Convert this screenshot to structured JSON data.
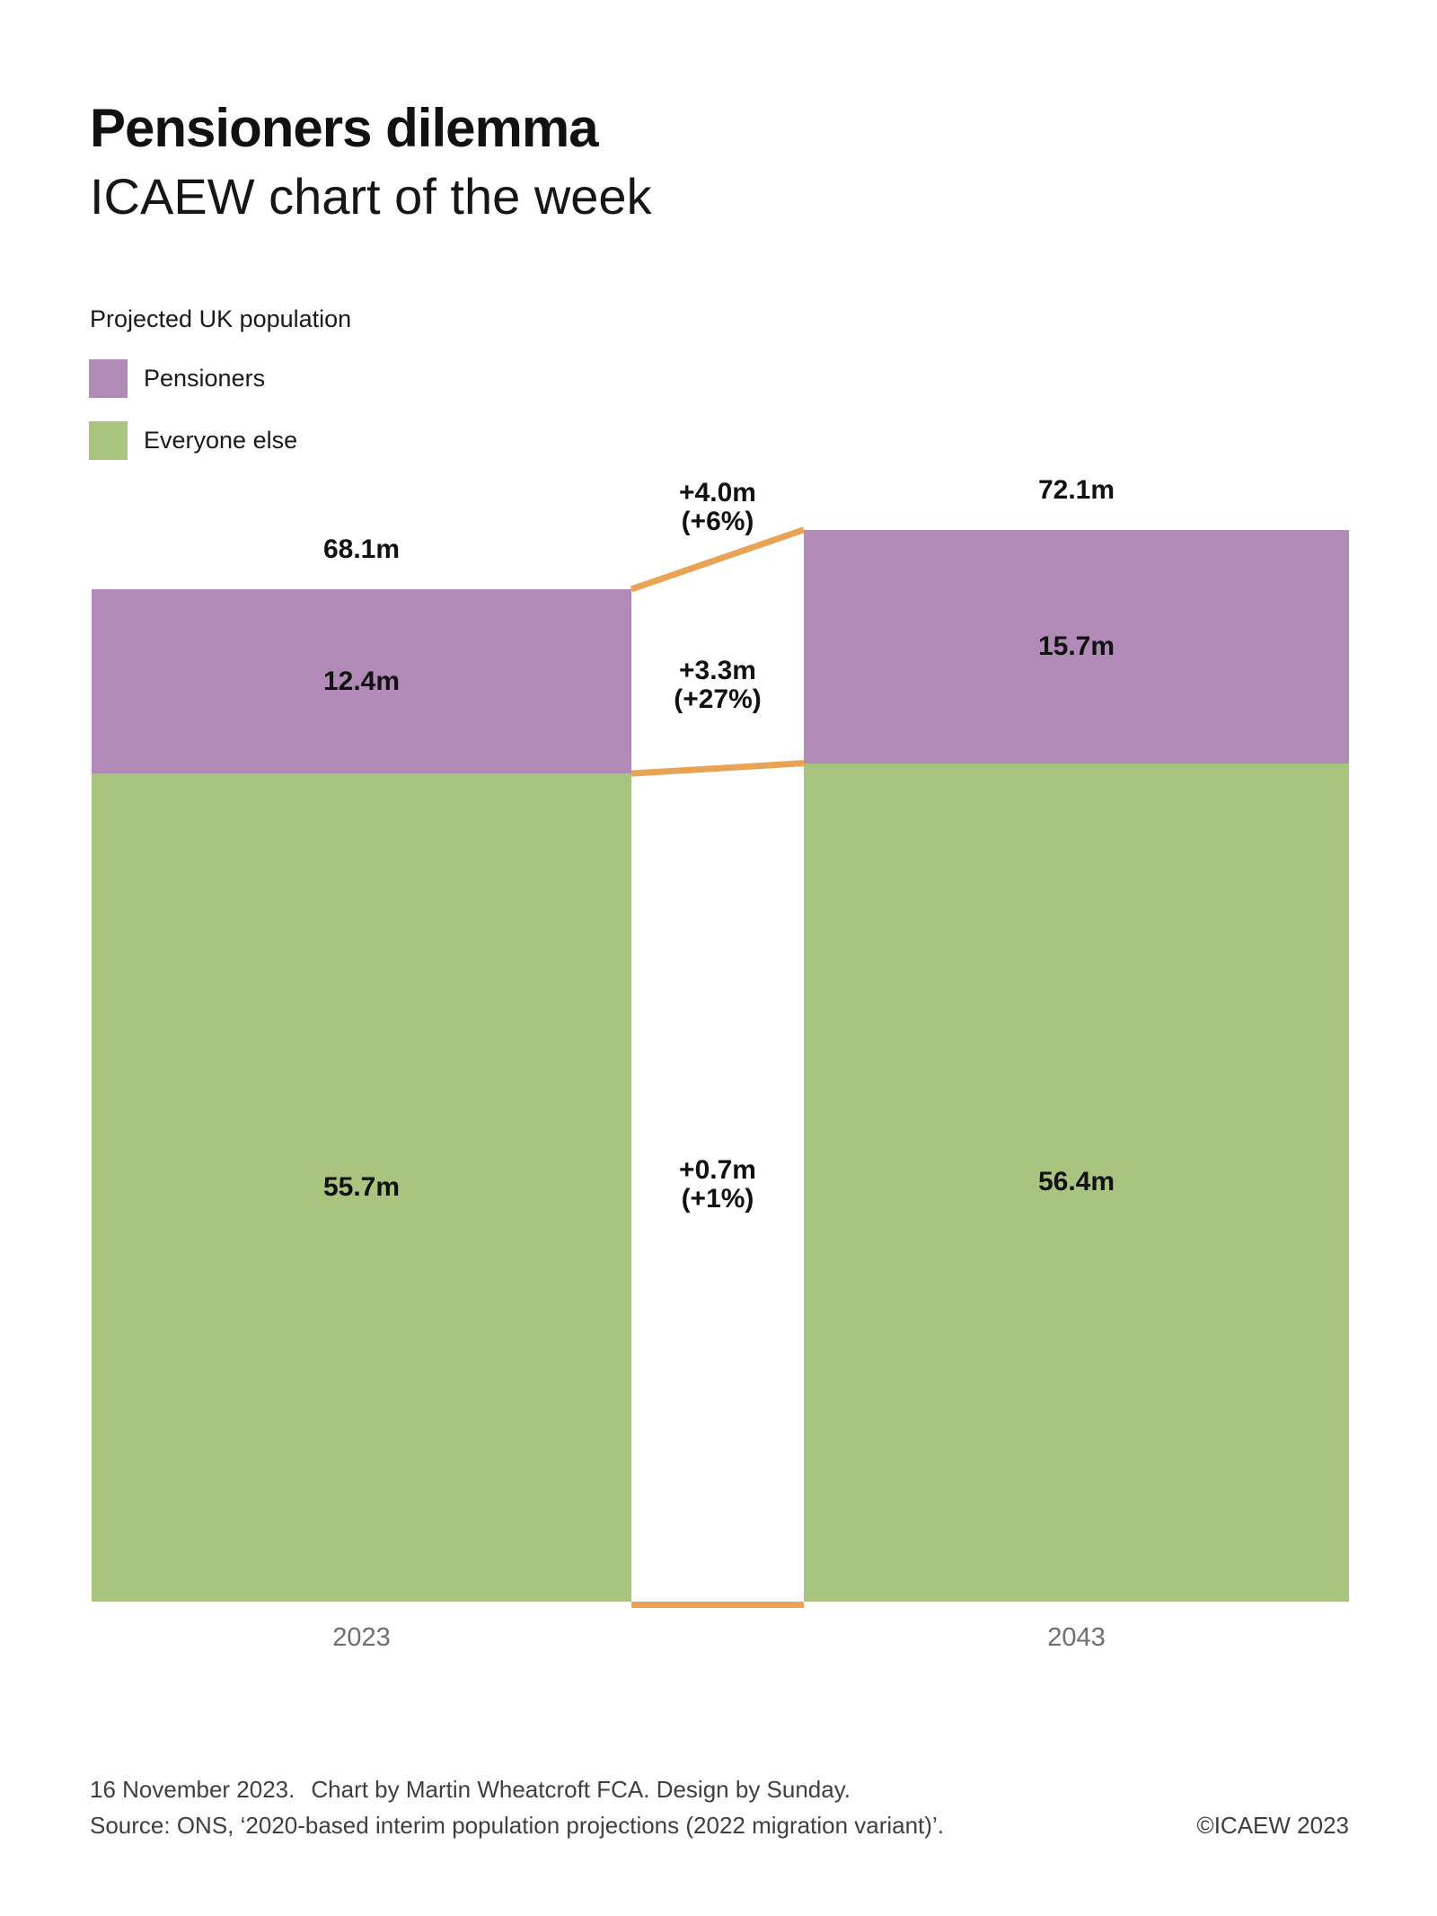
{
  "header": {
    "title": "Pensioners dilemma",
    "subtitle": "ICAEW chart of the week"
  },
  "legend": {
    "title": "Projected UK population",
    "items": [
      {
        "label": "Pensioners",
        "color": "#b18ab8"
      },
      {
        "label": "Everyone else",
        "color": "#a9c47f"
      }
    ]
  },
  "chart_data": {
    "type": "bar",
    "variant": "stacked-columns-with-slope-connectors",
    "title": "Projected UK population",
    "unit": "millions of people",
    "categories": [
      "2023",
      "2043"
    ],
    "series": [
      {
        "name": "Pensioners",
        "color": "#b18ab8",
        "values": [
          12.4,
          15.7
        ],
        "labels": [
          "12.4m",
          "15.7m"
        ]
      },
      {
        "name": "Everyone else",
        "color": "#a9c47f",
        "values": [
          55.7,
          56.4
        ],
        "labels": [
          "55.7m",
          "56.4m"
        ]
      }
    ],
    "totals": {
      "values": [
        68.1,
        72.1
      ],
      "labels": [
        "68.1m",
        "72.1m"
      ]
    },
    "changes": [
      {
        "applies_to": "Total population",
        "amount": "+4.0m",
        "percent": "(+6%)"
      },
      {
        "applies_to": "Pensioners",
        "amount": "+3.3m",
        "percent": "(+27%)"
      },
      {
        "applies_to": "Everyone else",
        "amount": "+0.7m",
        "percent": "(+1%)"
      }
    ],
    "connector_color": "#e8a355",
    "legend_position": "top-left",
    "grid": false,
    "axes": "none",
    "value_label_color": "#111111",
    "category_label_color": "#6f6f6f"
  },
  "footer": {
    "date": "16 November 2023.",
    "credit": "Chart by Martin Wheatcroft FCA. Design by Sunday.",
    "source": "Source: ONS, ‘2020-based interim population projections (2022 migration variant)’.",
    "copyright": "©ICAEW 2023"
  }
}
